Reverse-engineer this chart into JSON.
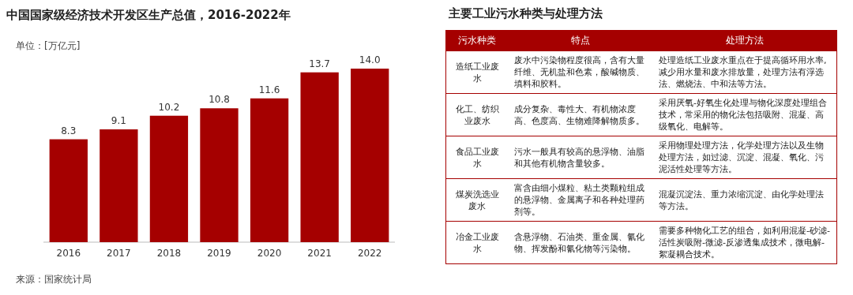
{
  "chart_data": [
    {
      "type": "bar",
      "title": "中国国家级经济技术开发区生产总值，2016-2022年",
      "ylabel": "单位：[万亿元]",
      "categories": [
        "2016",
        "2017",
        "2018",
        "2019",
        "2020",
        "2021",
        "2022"
      ],
      "values": [
        8.3,
        9.1,
        10.2,
        10.8,
        11.6,
        13.7,
        14.0
      ],
      "color": "#a50000",
      "value_labels": [
        "8.3",
        "9.1",
        "10.2",
        "10.8",
        "11.6",
        "13.7",
        "14.0"
      ],
      "annotations": [
        "来源：国家统计局"
      ]
    },
    {
      "type": "other",
      "title": "主要工业污水种类与处理方法",
      "categories": [
        "污水种类",
        "特点",
        "处理方法"
      ],
      "annotations": [
        "造纸工业废水",
        "废水中污染物程度很高，含有大量纤维、无机盐和色素，酸碱物质、填料和胶料。",
        "处理造纸工业废水重点在于提高循环用水率,减少用水量和废水排放量，处理方法有浮选法、燃烧法、中和法等方法。",
        "化工、纺织业废水",
        "成分复杂、毒性大、有机物浓度高、色度高、生物难降解物质多。",
        "采用厌氧-好氧生化处理与物化深度处理组合技术，常采用的物化法包括吸附、混凝、高级氧化、电解等。",
        "食品工业废水",
        "污水一般具有较高的悬浮物、油脂和其他有机物含量较多。",
        "采用物理处理方法，化学处理方法以及生物处理方法，如过滤、沉淀、混凝、氧化、污泥活性处理等方法。",
        "煤炭洗选业废水",
        "富含由细小煤粒、粘土类颗粒组成的悬浮物、金属离子和各种处理药剂等。",
        "混凝沉淀法、重力浓缩沉淀、由化学处理法等方法。",
        "冶金工业废水",
        "含悬浮物、石油类、重金属、氰化物、挥发酚和氰化物等污染物。",
        "需要多种物化工艺的组合，如利用混凝-砂滤-活性炭吸附-微滤-反渗透集成技术，微电解-絮凝耦合技术。"
      ]
    }
  ]
}
